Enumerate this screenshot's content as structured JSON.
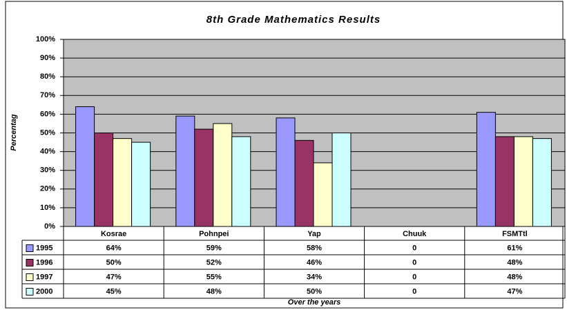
{
  "chart_data": {
    "type": "bar",
    "title": "8th Grade Mathematics Results",
    "ylabel": "Percentag",
    "xlabel": "Over the years",
    "categories": [
      "Kosrae",
      "Pohnpei",
      "Yap",
      "Chuuk",
      "FSMTtl"
    ],
    "series": [
      {
        "name": "1995",
        "color": "#9999FF",
        "values": [
          64,
          59,
          58,
          0,
          61
        ],
        "value_labels": [
          "64%",
          "59%",
          "58%",
          "0",
          "61%"
        ]
      },
      {
        "name": "1996",
        "color": "#993366",
        "values": [
          50,
          52,
          46,
          0,
          48
        ],
        "value_labels": [
          "50%",
          "52%",
          "46%",
          "0",
          "48%"
        ]
      },
      {
        "name": "1997",
        "color": "#FFFFCC",
        "values": [
          47,
          55,
          34,
          0,
          48
        ],
        "value_labels": [
          "47%",
          "55%",
          "34%",
          "0",
          "48%"
        ]
      },
      {
        "name": "2000",
        "color": "#CCFFFF",
        "values": [
          45,
          48,
          50,
          0,
          47
        ],
        "value_labels": [
          "45%",
          "48%",
          "50%",
          "0",
          "47%"
        ]
      }
    ],
    "ylim": [
      0,
      100
    ],
    "yticks": [
      {
        "value": 0,
        "label": "0%"
      },
      {
        "value": 10,
        "label": "10%"
      },
      {
        "value": 20,
        "label": "20%"
      },
      {
        "value": 30,
        "label": "30%"
      },
      {
        "value": 40,
        "label": "40%"
      },
      {
        "value": 50,
        "label": "50%"
      },
      {
        "value": 60,
        "label": "60%"
      },
      {
        "value": 70,
        "label": "70%"
      },
      {
        "value": 80,
        "label": "80%"
      },
      {
        "value": 90,
        "label": "90%"
      },
      {
        "value": 100,
        "label": "100%"
      }
    ],
    "grid": true,
    "plot_background": "#C0C0C0"
  }
}
